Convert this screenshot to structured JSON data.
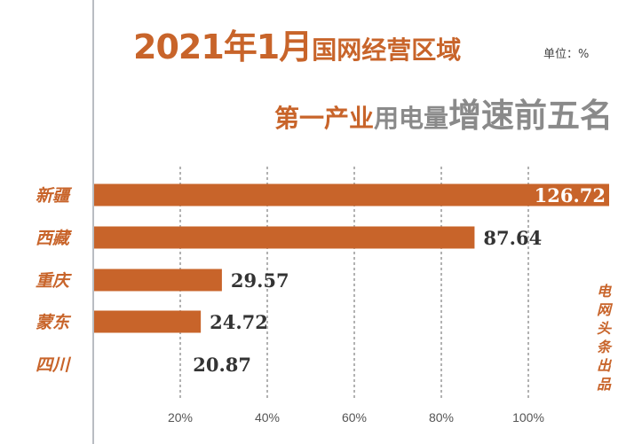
{
  "title": {
    "line1_big": "2021年1月",
    "line1_rest": "国网经营区域",
    "line2_orange": "第一产业",
    "line2_gray": "用电量",
    "line2_gray_big": "增速前五名"
  },
  "unit_label": "单位：%",
  "watermark": "电网头条出品",
  "chart_data": {
    "type": "bar",
    "orientation": "horizontal",
    "categories": [
      "新疆",
      "西藏",
      "重庆",
      "蒙东",
      "四川"
    ],
    "values": [
      126.72,
      87.64,
      29.57,
      24.72,
      20.87
    ],
    "bar_shown": [
      true,
      true,
      true,
      true,
      false
    ],
    "data_labels": [
      "126.72",
      "87.64",
      "29.57",
      "24.72",
      "20.87"
    ],
    "x_ticks": [
      20,
      40,
      60,
      80,
      100
    ],
    "x_tick_labels": [
      "20%",
      "40%",
      "60%",
      "80%",
      "100%"
    ],
    "xlim": [
      0,
      119
    ],
    "grid": "vertical dashed",
    "unit": "%",
    "colors": {
      "bar": "#c8642a",
      "category_label": "#c8642a",
      "value_label": "#333333",
      "inside_label": "#ffffff",
      "grid": "#666666"
    }
  }
}
